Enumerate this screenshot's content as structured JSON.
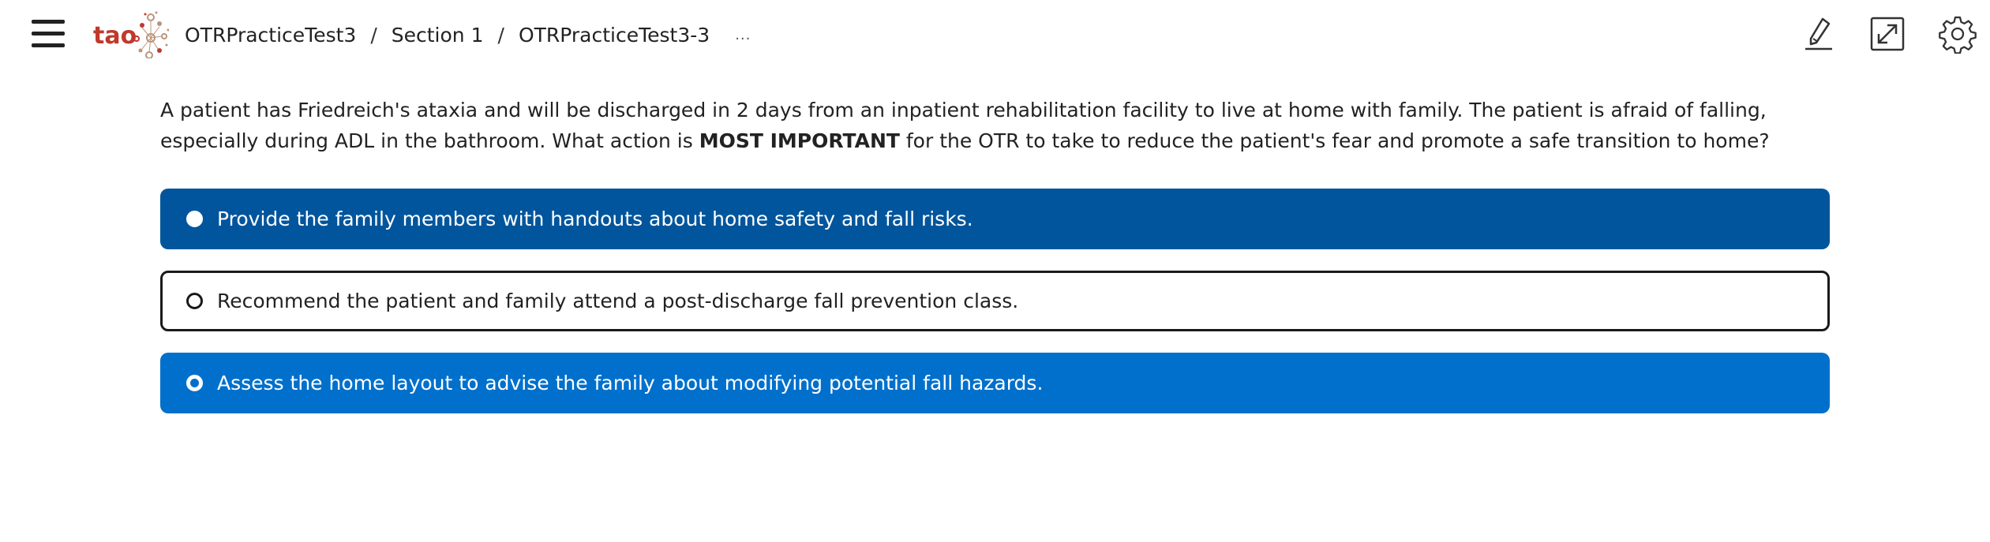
{
  "header": {
    "logo_text": "tao",
    "breadcrumb": {
      "test": "OTRPracticeTest3",
      "section": "Section 1",
      "item": "OTRPracticeTest3-3",
      "more": "...",
      "separator": "/"
    },
    "tools": [
      "highlighter-icon",
      "fullscreen-icon",
      "settings-icon"
    ]
  },
  "question": {
    "text_before": "A patient has Friedreich's ataxia and will be discharged in 2 days from an inpatient rehabilitation facility to live at home with family. The patient is afraid of falling, especially during ADL in the bathroom. What action is ",
    "emphasis": "MOST IMPORTANT",
    "text_after": " for the OTR to take to reduce the patient's fear and promote a safe transition to home?"
  },
  "choices": [
    {
      "label": "Provide the family members with handouts about home safety and fall risks.",
      "state": "selected"
    },
    {
      "label": "Recommend the patient and family attend a post-discharge fall prevention class.",
      "state": "focused"
    },
    {
      "label": "Assess the home layout to advise the family about modifying potential fall hazards.",
      "state": "hover"
    }
  ],
  "colors": {
    "selected": "#00559d",
    "hover": "#0070cc",
    "logo": "#c0392b"
  }
}
